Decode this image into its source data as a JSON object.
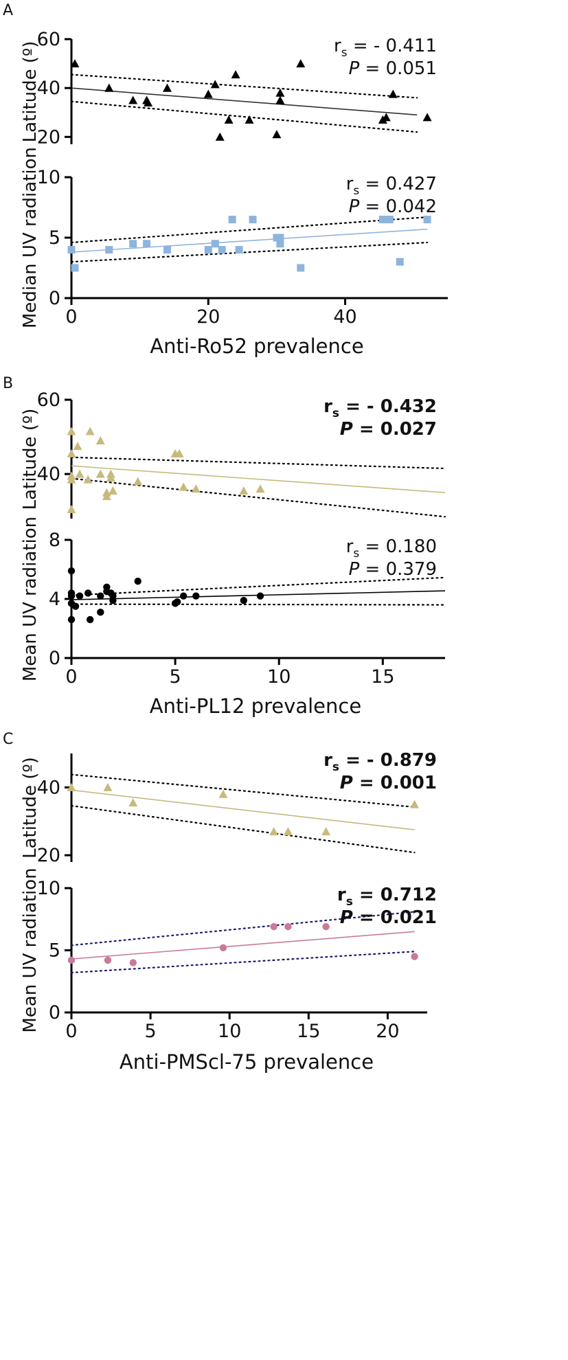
{
  "chart_data": [
    {
      "panel": "A",
      "type": "scatter",
      "xlabel": "Anti-Ro52 prevalence",
      "xlim": [
        0,
        55
      ],
      "xticks": [
        0,
        20,
        40
      ],
      "plots": [
        {
          "id": "latitude",
          "ylabel": "Latitude (º)",
          "ylim": [
            17,
            60
          ],
          "yticks": [
            20,
            40,
            60
          ],
          "marker": "triangle",
          "color": "#000000",
          "fit_color": "#333333",
          "ci_color": "#000000",
          "stat_bold": false,
          "stat_r_prefix": "r",
          "stat_r_sub": "s",
          "stat_r": "= - 0.411",
          "stat_p_italic": "P",
          "stat_p": "= 0.051",
          "fit": [
            [
              0,
              40.0
            ],
            [
              50.5,
              29.0
            ]
          ],
          "ci_upper": [
            [
              0,
              45.5
            ],
            [
              50.5,
              36.0
            ]
          ],
          "ci_lower": [
            [
              0,
              34.5
            ],
            [
              50.5,
              22.0
            ]
          ],
          "points": [
            [
              0.5,
              50
            ],
            [
              5.5,
              40
            ],
            [
              9,
              35
            ],
            [
              11,
              35
            ],
            [
              11.2,
              34
            ],
            [
              14,
              40
            ],
            [
              20,
              37.5
            ],
            [
              21,
              41.5
            ],
            [
              21.7,
              20
            ],
            [
              23,
              27
            ],
            [
              24,
              45.5
            ],
            [
              26,
              27
            ],
            [
              30,
              21
            ],
            [
              30.5,
              38
            ],
            [
              30.5,
              35
            ],
            [
              33.5,
              50
            ],
            [
              45.5,
              27
            ],
            [
              46,
              28
            ],
            [
              47,
              37.5
            ],
            [
              52,
              28
            ]
          ]
        },
        {
          "id": "uv",
          "ylabel": "Median UV radiation",
          "ylim": [
            0,
            10
          ],
          "yticks": [
            0,
            5,
            10
          ],
          "marker": "square",
          "color": "#8eb4dc",
          "fit_color": "#8eb4dc",
          "ci_color": "#000000",
          "stat_bold": false,
          "stat_r_prefix": "r",
          "stat_r_sub": "s",
          "stat_r": "= 0.427",
          "stat_p_italic": "P",
          "stat_p": "= 0.042",
          "fit": [
            [
              0,
              3.8
            ],
            [
              52,
              5.7
            ]
          ],
          "ci_upper": [
            [
              0,
              4.6
            ],
            [
              52,
              6.7
            ]
          ],
          "ci_lower": [
            [
              0,
              3.0
            ],
            [
              52,
              4.6
            ]
          ],
          "points": [
            [
              0,
              4
            ],
            [
              0.5,
              2.5
            ],
            [
              5.5,
              4
            ],
            [
              9,
              4.5
            ],
            [
              11,
              4.5
            ],
            [
              14,
              4
            ],
            [
              20,
              4
            ],
            [
              21,
              4.5
            ],
            [
              22,
              4
            ],
            [
              23.5,
              6.5
            ],
            [
              24.5,
              4
            ],
            [
              26.5,
              6.5
            ],
            [
              30,
              5
            ],
            [
              30.5,
              5
            ],
            [
              30.5,
              4.5
            ],
            [
              33.5,
              2.5
            ],
            [
              45.5,
              6.5
            ],
            [
              46.5,
              6.5
            ],
            [
              48,
              3
            ],
            [
              52,
              6.5
            ]
          ]
        }
      ]
    },
    {
      "panel": "B",
      "type": "scatter",
      "xlabel": "Anti-PL12 prevalence",
      "xlim": [
        0,
        18
      ],
      "xticks": [
        0,
        5,
        10,
        15
      ],
      "plots": [
        {
          "id": "latitude",
          "ylabel": "Latitude (º)",
          "ylim": [
            28,
            60
          ],
          "yticks": [
            40,
            60
          ],
          "marker": "triangle",
          "color": "#c8b97d",
          "fit_color": "#c8b97d",
          "ci_color": "#000000",
          "stat_bold": true,
          "stat_r_prefix": "r",
          "stat_r_sub": "s",
          "stat_r": "= - 0.432",
          "stat_p_italic": "P",
          "stat_p": "= 0.027",
          "fit": [
            [
              0,
              42.2
            ],
            [
              18,
              35.0
            ]
          ],
          "ci_upper": [
            [
              0,
              44.5
            ],
            [
              18,
              41.5
            ]
          ],
          "ci_lower": [
            [
              0,
              38.8
            ],
            [
              18,
              28.5
            ]
          ],
          "points": [
            [
              0,
              51.5
            ],
            [
              0,
              45.5
            ],
            [
              0,
              39.5
            ],
            [
              0,
              38.5
            ],
            [
              0,
              30.5
            ],
            [
              0.3,
              47.5
            ],
            [
              0.4,
              40
            ],
            [
              0.8,
              38.5
            ],
            [
              0.9,
              51.5
            ],
            [
              1.4,
              49
            ],
            [
              1.4,
              40
            ],
            [
              1.7,
              35
            ],
            [
              1.7,
              34
            ],
            [
              1.9,
              40
            ],
            [
              1.9,
              39
            ],
            [
              2,
              35.5
            ],
            [
              3.2,
              38
            ],
            [
              5,
              45.5
            ],
            [
              5.2,
              45.5
            ],
            [
              5.4,
              36.5
            ],
            [
              6,
              36
            ],
            [
              8.3,
              35.5
            ],
            [
              9.1,
              36
            ]
          ]
        },
        {
          "id": "uv",
          "ylabel": "Mean UV radiation",
          "ylim": [
            0,
            8
          ],
          "yticks": [
            0,
            4,
            8
          ],
          "marker": "circle",
          "color": "#000000",
          "fit_color": "#000000",
          "ci_color": "#000000",
          "stat_bold": false,
          "stat_r_prefix": "r",
          "stat_r_sub": "s",
          "stat_r": "= 0.180",
          "stat_p_italic": "P",
          "stat_p": "= 0.379",
          "fit": [
            [
              0,
              3.95
            ],
            [
              18,
              4.55
            ]
          ],
          "ci_upper": [
            [
              0,
              4.25
            ],
            [
              18,
              5.45
            ]
          ],
          "ci_lower": [
            [
              0,
              3.65
            ],
            [
              18,
              3.6
            ]
          ],
          "points": [
            [
              0,
              5.9
            ],
            [
              0,
              4.4
            ],
            [
              0,
              4.2
            ],
            [
              0,
              3.7
            ],
            [
              0,
              2.6
            ],
            [
              0.2,
              3.5
            ],
            [
              0.4,
              4.2
            ],
            [
              0.8,
              4.4
            ],
            [
              0.9,
              2.6
            ],
            [
              1.4,
              4.2
            ],
            [
              1.4,
              3.1
            ],
            [
              1.7,
              4.8
            ],
            [
              1.7,
              4.5
            ],
            [
              1.9,
              4.4
            ],
            [
              2,
              4.2
            ],
            [
              2,
              3.9
            ],
            [
              3.2,
              5.2
            ],
            [
              5,
              3.7
            ],
            [
              5.1,
              3.8
            ],
            [
              5.4,
              4.2
            ],
            [
              6,
              4.2
            ],
            [
              8.3,
              3.9
            ],
            [
              9.1,
              4.2
            ]
          ]
        }
      ]
    },
    {
      "panel": "C",
      "type": "scatter",
      "xlabel": "Anti-PMScl-75 prevalence",
      "xlim": [
        0,
        22.5
      ],
      "xticks": [
        0,
        5,
        10,
        15,
        20
      ],
      "plots": [
        {
          "id": "latitude",
          "ylabel": "Latitude (º)",
          "ylim": [
            18,
            50
          ],
          "yticks": [
            20,
            40
          ],
          "marker": "triangle",
          "color": "#c8b97d",
          "fit_color": "#c8b97d",
          "ci_color": "#000000",
          "stat_bold": true,
          "stat_r_prefix": "r",
          "stat_r_sub": "s",
          "stat_r": "= - 0.879",
          "stat_p_italic": "P",
          "stat_p": "= 0.001",
          "fit": [
            [
              0,
              39.2
            ],
            [
              21.7,
              27.5
            ]
          ],
          "ci_upper": [
            [
              0,
              43.8
            ],
            [
              21.7,
              34.2
            ]
          ],
          "ci_lower": [
            [
              0,
              34.6
            ],
            [
              21.7,
              20.8
            ]
          ],
          "points": [
            [
              0,
              40
            ],
            [
              2.3,
              40
            ],
            [
              3.9,
              35.5
            ],
            [
              9.6,
              38
            ],
            [
              12.8,
              27
            ],
            [
              13.7,
              27
            ],
            [
              16.1,
              27
            ],
            [
              21.7,
              35
            ]
          ]
        },
        {
          "id": "uv",
          "ylabel": "Mean UV radiation",
          "ylim": [
            0,
            10
          ],
          "yticks": [
            0,
            5,
            10
          ],
          "marker": "circle",
          "color": "#c97a9b",
          "fit_color": "#c97a9b",
          "ci_color": "#1a1a6e",
          "stat_bold": true,
          "stat_r_prefix": "r",
          "stat_r_sub": "s",
          "stat_r": "= 0.712",
          "stat_p_italic": "P",
          "stat_p": "= 0.021",
          "fit": [
            [
              0,
              4.3
            ],
            [
              21.7,
              6.5
            ]
          ],
          "ci_upper": [
            [
              0,
              5.4
            ],
            [
              21.7,
              8.1
            ]
          ],
          "ci_lower": [
            [
              0,
              3.2
            ],
            [
              21.7,
              4.9
            ]
          ],
          "points": [
            [
              0,
              4.2
            ],
            [
              2.3,
              4.2
            ],
            [
              3.9,
              4.0
            ],
            [
              9.6,
              5.2
            ],
            [
              12.8,
              6.9
            ],
            [
              13.7,
              6.9
            ],
            [
              16.1,
              6.9
            ],
            [
              21.7,
              4.5
            ]
          ]
        }
      ]
    }
  ]
}
